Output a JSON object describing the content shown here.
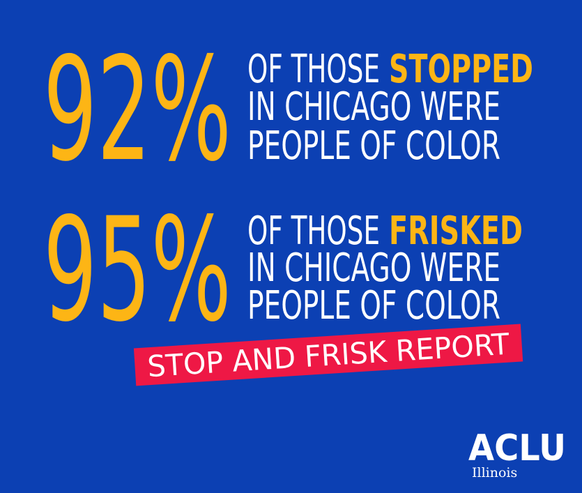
{
  "stats": [
    {
      "figure": "92%",
      "line1_prefix": "OF THOSE",
      "line1_highlight": "STOPPED",
      "line2": "IN CHICAGO WERE",
      "line3": "PEOPLE OF COLOR"
    },
    {
      "figure": "95%",
      "line1_prefix": "OF THOSE",
      "line1_highlight": "FRISKED",
      "line2": "IN CHICAGO WERE",
      "line3": "PEOPLE OF COLOR"
    }
  ],
  "banner": "STOP AND FRISK REPORT",
  "logo": {
    "name": "ACLU",
    "region": "Illinois"
  }
}
